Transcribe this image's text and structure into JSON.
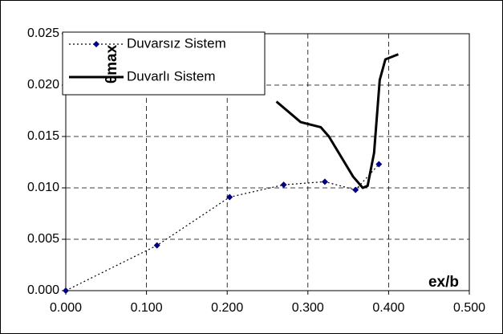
{
  "chart_data": {
    "type": "line",
    "x_label": "ex/b",
    "y_label": "θmax",
    "series": [
      {
        "name": "Duvarsız Sistem",
        "color": "#000080",
        "line_color": "#000000",
        "dash": "dotted",
        "marker": "diamond",
        "x": [
          0.0,
          0.113,
          0.203,
          0.27,
          0.321,
          0.359,
          0.388
        ],
        "values": [
          0.0,
          0.0044,
          0.0091,
          0.0103,
          0.0106,
          0.0098,
          0.0123
        ]
      },
      {
        "name": "Duvarlı Sistem",
        "color": "#000000",
        "line_color": "#000000",
        "dash": "solid",
        "marker": "none",
        "x": [
          0.261,
          0.291,
          0.316,
          0.326,
          0.356,
          0.368,
          0.374,
          0.382,
          0.389,
          0.396,
          0.412
        ],
        "values": [
          0.0184,
          0.0164,
          0.0159,
          0.015,
          0.0111,
          0.01,
          0.0102,
          0.0134,
          0.0205,
          0.0225,
          0.023
        ]
      }
    ],
    "xlim": [
      0,
      0.5
    ],
    "ylim": [
      0,
      0.025
    ],
    "xticks": [
      {
        "value": 0,
        "label": "0.000"
      },
      {
        "value": 0.1,
        "label": "0.100"
      },
      {
        "value": 0.2,
        "label": "0.200"
      },
      {
        "value": 0.3,
        "label": "0.300"
      },
      {
        "value": 0.4,
        "label": "0.400"
      },
      {
        "value": 0.5,
        "label": "0.500"
      }
    ],
    "yticks": [
      {
        "value": 0,
        "label": "0.000"
      },
      {
        "value": 0.005,
        "label": "0.005"
      },
      {
        "value": 0.01,
        "label": "0.010"
      },
      {
        "value": 0.015,
        "label": "0.015"
      },
      {
        "value": 0.02,
        "label": "0.020"
      },
      {
        "value": 0.025,
        "label": "0.025"
      }
    ],
    "grid": true,
    "legend": "upper left"
  }
}
